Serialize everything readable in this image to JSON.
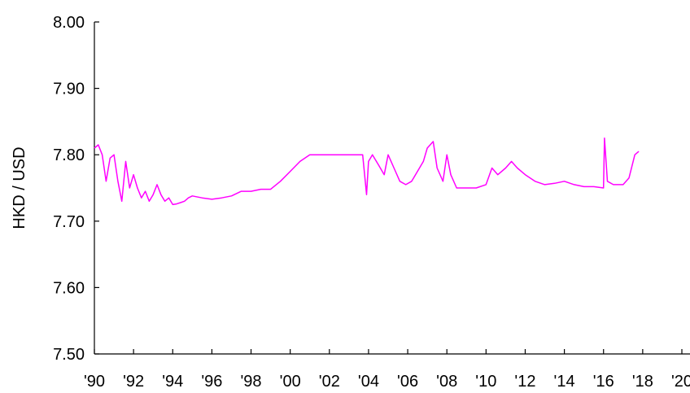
{
  "chart_data": {
    "type": "line",
    "title": "",
    "xlabel": "",
    "ylabel": "HKD / USD",
    "xlim": [
      1990,
      2020
    ],
    "ylim": [
      7.5,
      8.0
    ],
    "grid": false,
    "legend": "none",
    "x_tick_labels": [
      "'90",
      "'92",
      "'94",
      "'96",
      "'98",
      "'00",
      "'02",
      "'04",
      "'06",
      "'08",
      "'10",
      "'12",
      "'14",
      "'16",
      "'18",
      "'20"
    ],
    "x_tick_values": [
      1990,
      1992,
      1994,
      1996,
      1998,
      2000,
      2002,
      2004,
      2006,
      2008,
      2010,
      2012,
      2014,
      2016,
      2018,
      2020
    ],
    "y_tick_labels": [
      "7.50",
      "7.60",
      "7.70",
      "7.80",
      "7.90",
      "8.00"
    ],
    "y_tick_values": [
      7.5,
      7.6,
      7.7,
      7.8,
      7.9,
      8.0
    ],
    "series": [
      {
        "color": "#ff00ff",
        "x": [
          1990.0,
          1990.2,
          1990.4,
          1990.6,
          1990.8,
          1991.0,
          1991.2,
          1991.4,
          1991.6,
          1991.8,
          1992.0,
          1992.2,
          1992.4,
          1992.6,
          1992.8,
          1993.0,
          1993.2,
          1993.4,
          1993.6,
          1993.8,
          1994.0,
          1994.2,
          1994.4,
          1994.6,
          1994.8,
          1995.0,
          1995.5,
          1996.0,
          1996.5,
          1997.0,
          1997.5,
          1998.0,
          1998.5,
          1999.0,
          1999.5,
          2000.0,
          2000.5,
          2001.0,
          2001.5,
          2002.0,
          2002.5,
          2003.0,
          2003.5,
          2003.7,
          2003.9,
          2004.0,
          2004.2,
          2004.5,
          2004.8,
          2005.0,
          2005.3,
          2005.6,
          2005.9,
          2006.2,
          2006.5,
          2006.8,
          2007.0,
          2007.3,
          2007.5,
          2007.8,
          2008.0,
          2008.2,
          2008.5,
          2008.8,
          2009.0,
          2009.5,
          2010.0,
          2010.3,
          2010.6,
          2011.0,
          2011.3,
          2011.6,
          2012.0,
          2012.5,
          2013.0,
          2013.5,
          2014.0,
          2014.5,
          2015.0,
          2015.5,
          2016.0,
          2016.05,
          2016.2,
          2016.5,
          2017.0,
          2017.3,
          2017.6,
          2017.8
        ],
        "y": [
          7.81,
          7.815,
          7.8,
          7.76,
          7.795,
          7.8,
          7.76,
          7.73,
          7.79,
          7.75,
          7.77,
          7.75,
          7.735,
          7.745,
          7.73,
          7.74,
          7.755,
          7.74,
          7.73,
          7.735,
          7.725,
          7.726,
          7.728,
          7.73,
          7.735,
          7.738,
          7.735,
          7.733,
          7.735,
          7.738,
          7.745,
          7.745,
          7.748,
          7.748,
          7.76,
          7.775,
          7.79,
          7.8,
          7.8,
          7.8,
          7.8,
          7.8,
          7.8,
          7.8,
          7.74,
          7.79,
          7.8,
          7.785,
          7.77,
          7.8,
          7.78,
          7.76,
          7.755,
          7.76,
          7.775,
          7.79,
          7.81,
          7.82,
          7.78,
          7.76,
          7.8,
          7.77,
          7.75,
          7.75,
          7.75,
          7.75,
          7.755,
          7.78,
          7.77,
          7.78,
          7.79,
          7.78,
          7.77,
          7.76,
          7.755,
          7.757,
          7.76,
          7.755,
          7.752,
          7.752,
          7.75,
          7.825,
          7.76,
          7.755,
          7.755,
          7.765,
          7.8,
          7.805
        ]
      }
    ]
  }
}
